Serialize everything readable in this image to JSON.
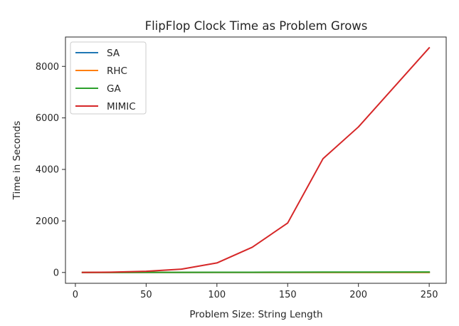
{
  "chart_data": {
    "type": "line",
    "title": "FlipFlop Clock Time as Problem Grows",
    "xlabel": "Problem Size: String Length",
    "ylabel": "Time in Seconds",
    "x": [
      5,
      25,
      50,
      75,
      100,
      125,
      150,
      175,
      200,
      250
    ],
    "xlim": [
      -7,
      262
    ],
    "ylim": [
      -420,
      9140
    ],
    "xticks": [
      0,
      50,
      100,
      150,
      200,
      250
    ],
    "yticks": [
      0,
      2000,
      4000,
      6000,
      8000
    ],
    "grid": false,
    "legend_position": "top-left",
    "series": [
      {
        "name": "SA",
        "color": "#1f77b4",
        "values": [
          0.1,
          0.3,
          0.5,
          0.8,
          1,
          1.3,
          1.6,
          2,
          2.3,
          3
        ]
      },
      {
        "name": "RHC",
        "color": "#ff7f0e",
        "values": [
          0.1,
          0.3,
          0.5,
          0.8,
          1,
          1.3,
          1.6,
          2,
          2.3,
          3
        ]
      },
      {
        "name": "GA",
        "color": "#2ca02c",
        "values": [
          0.5,
          2,
          4,
          6,
          8,
          10,
          12,
          14,
          16,
          20
        ]
      },
      {
        "name": "MIMIC",
        "color": "#d62728",
        "values": [
          2,
          12,
          45,
          130,
          370,
          980,
          1920,
          4420,
          5650,
          8720
        ]
      }
    ]
  }
}
